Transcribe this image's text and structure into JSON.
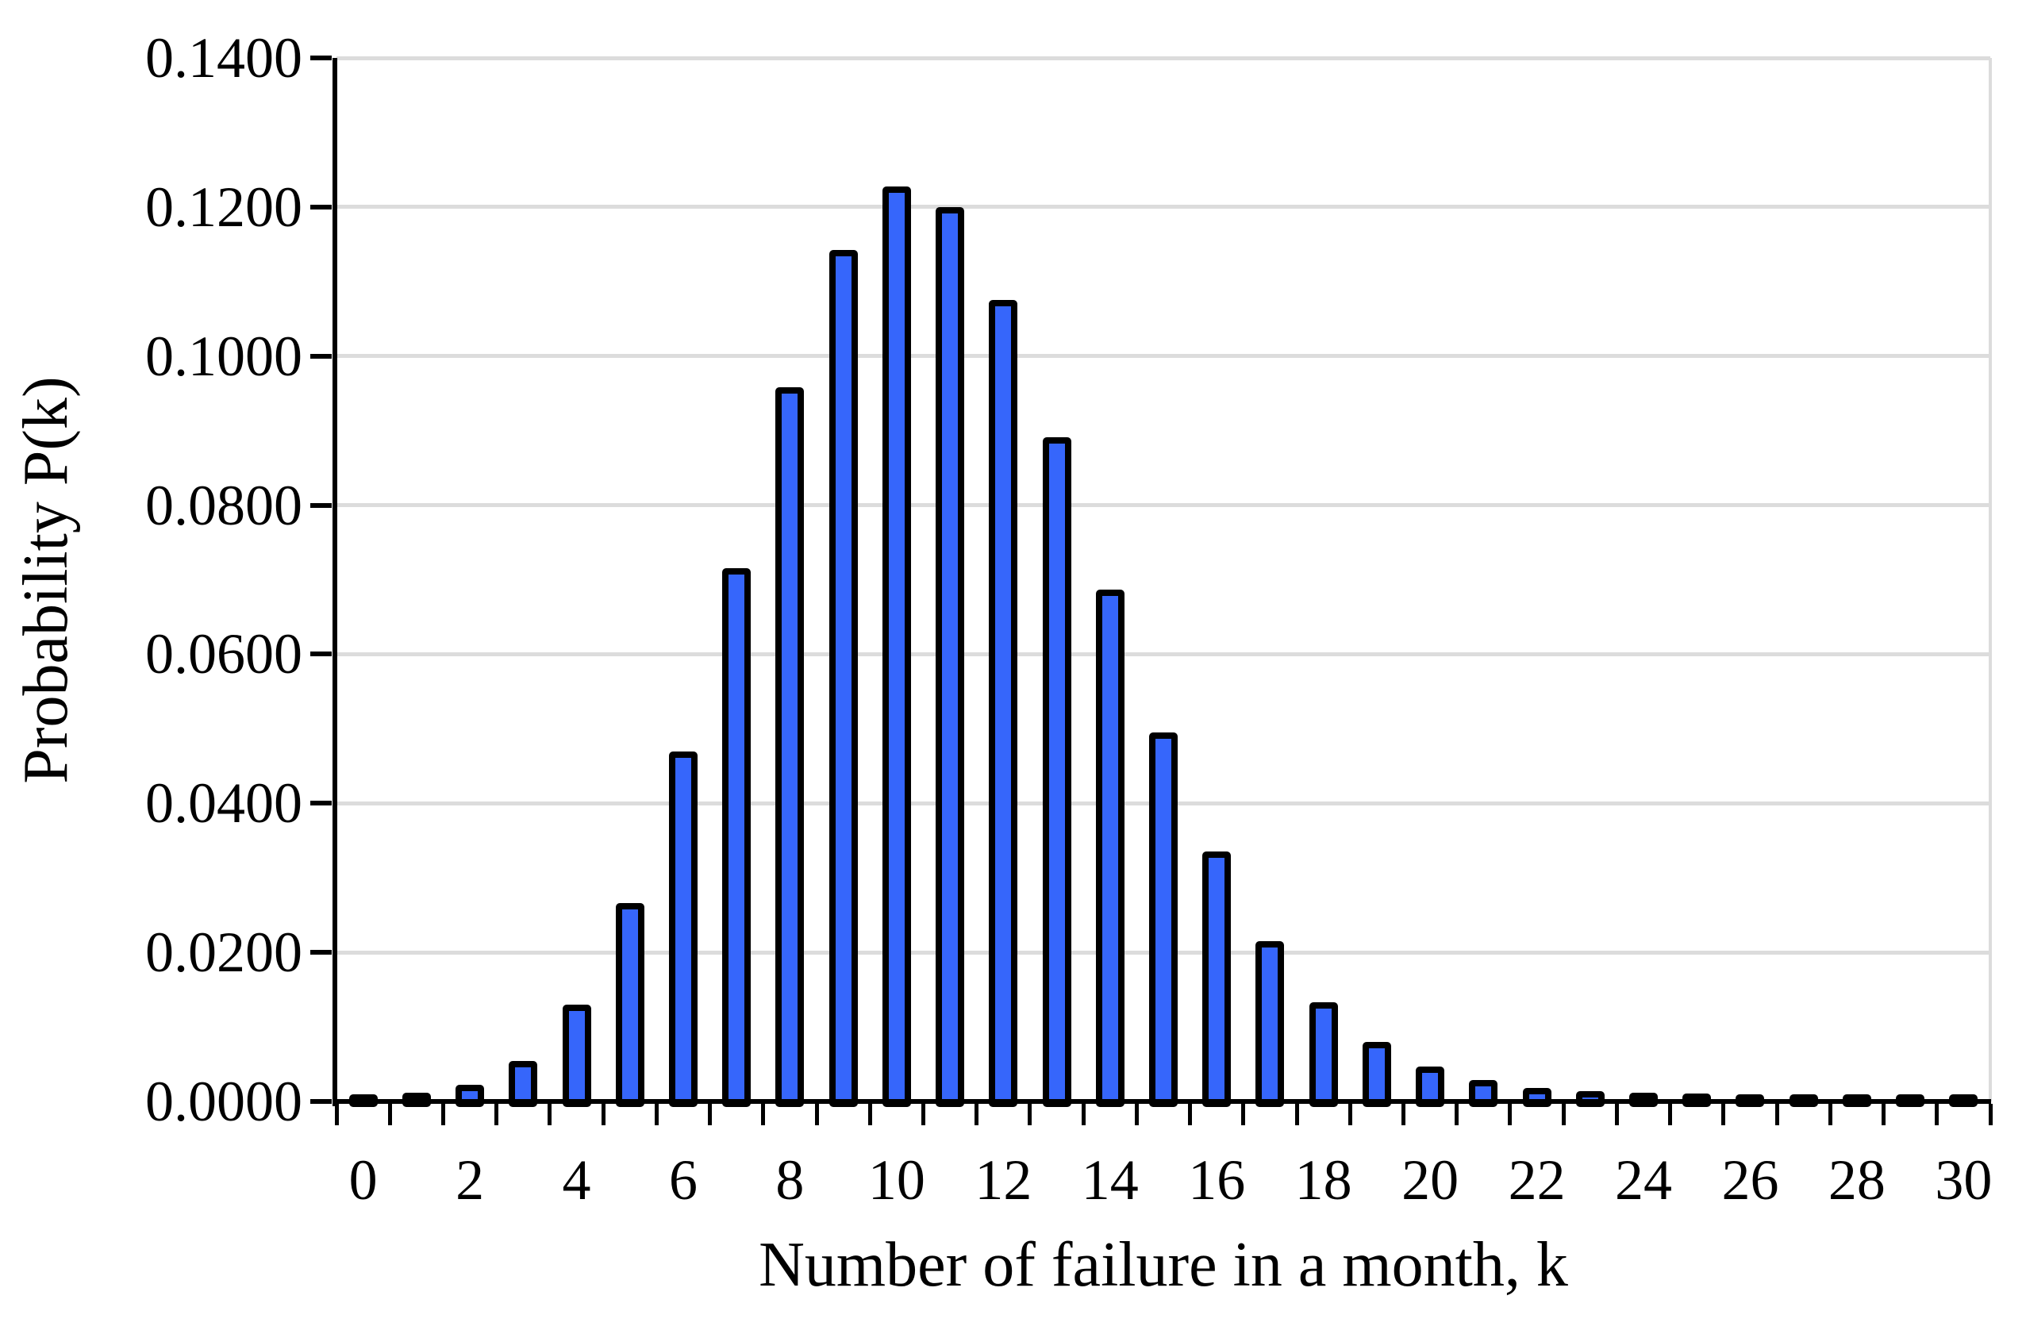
{
  "chart_data": {
    "type": "bar",
    "title": "",
    "xlabel": "Number of failure in a month, k",
    "ylabel": "Probability P(k)",
    "categories": [
      0,
      1,
      2,
      3,
      4,
      5,
      6,
      7,
      8,
      9,
      10,
      11,
      12,
      13,
      14,
      15,
      16,
      17,
      18,
      19,
      20,
      21,
      22,
      23,
      24,
      25,
      26,
      27,
      28,
      29,
      30
    ],
    "values": [
      2e-05,
      0.00023,
      0.00124,
      0.00445,
      0.012,
      0.0257,
      0.046,
      0.0706,
      0.0949,
      0.1133,
      0.1218,
      0.119,
      0.1066,
      0.0881,
      0.0677,
      0.0485,
      0.0326,
      0.0206,
      0.0123,
      0.007,
      0.0037,
      0.0019,
      0.0009,
      0.0004,
      0.0002,
      8e-05,
      3e-05,
      1e-05,
      1e-05,
      5e-06,
      2e-06
    ],
    "x_tick_labels": [
      "0",
      "2",
      "4",
      "6",
      "8",
      "10",
      "12",
      "14",
      "16",
      "18",
      "20",
      "22",
      "24",
      "26",
      "28",
      "30"
    ],
    "x_tick_label_step": 2,
    "y_tick_labels": [
      "0.0000",
      "0.0200",
      "0.0400",
      "0.0600",
      "0.0800",
      "0.1000",
      "0.1200",
      "0.1400"
    ],
    "ylim": [
      0,
      0.14
    ],
    "y_tick_step": 0.02,
    "grid": "horizontal-only",
    "legend": "none",
    "bar_fill_color": "#3666FB",
    "bar_border_color": "#000000",
    "gridline_color": "#DCDCDC",
    "axis_color": "#000000",
    "background_color": "#FFFFFF"
  }
}
